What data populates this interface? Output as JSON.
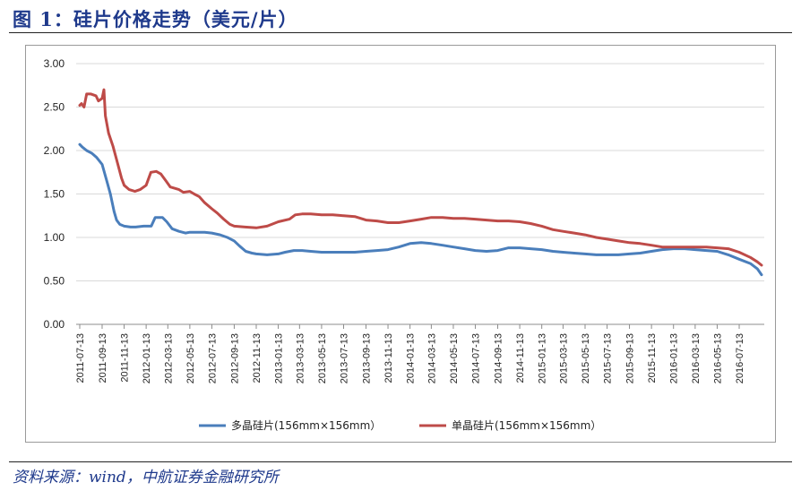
{
  "figure": {
    "title": "图 1：硅片价格走势（美元/片）",
    "source_label": "资料来源：",
    "source_text": "wind，中航证券金融研究所"
  },
  "colors": {
    "series_poly": "#4a7ebb",
    "series_mono": "#be4b48",
    "grid": "#d9d9d9",
    "axis": "#8c8c8c",
    "title": "#1f3a8c"
  },
  "chart_data": {
    "type": "line",
    "title": "",
    "xlabel": "",
    "ylabel": "",
    "ylim": [
      0,
      3
    ],
    "yticks": [
      "3.00",
      "2.50",
      "2.00",
      "1.50",
      "1.00",
      "0.50",
      "0.00"
    ],
    "xlim": [
      "2011-07-13",
      "2016-09-13"
    ],
    "xticks": [
      "2011-07-13",
      "2011-09-13",
      "2011-11-13",
      "2012-01-13",
      "2012-03-13",
      "2012-05-13",
      "2012-07-13",
      "2012-09-13",
      "2012-11-13",
      "2013-01-13",
      "2013-03-13",
      "2013-05-13",
      "2013-07-13",
      "2013-09-13",
      "2013-11-13",
      "2014-01-13",
      "2014-03-13",
      "2014-05-13",
      "2014-07-13",
      "2014-09-13",
      "2014-11-13",
      "2015-01-13",
      "2015-03-13",
      "2015-05-13",
      "2015-07-13",
      "2015-09-13",
      "2015-11-13",
      "2016-01-13",
      "2016-03-13",
      "2016-05-13",
      "2016-07-13"
    ],
    "grid": "horizontal",
    "legend_position": "bottom",
    "series": [
      {
        "name": "多晶硅片(156mm×156mm）",
        "color": "#4a7ebb",
        "points": [
          [
            "2011-07-13",
            2.07
          ],
          [
            "2011-07-20",
            2.04
          ],
          [
            "2011-08-01",
            2.0
          ],
          [
            "2011-08-15",
            1.97
          ],
          [
            "2011-08-29",
            1.92
          ],
          [
            "2011-09-13",
            1.84
          ],
          [
            "2011-09-26",
            1.65
          ],
          [
            "2011-10-06",
            1.5
          ],
          [
            "2011-10-16",
            1.3
          ],
          [
            "2011-10-23",
            1.2
          ],
          [
            "2011-11-01",
            1.15
          ],
          [
            "2011-11-13",
            1.13
          ],
          [
            "2011-12-01",
            1.12
          ],
          [
            "2011-12-15",
            1.12
          ],
          [
            "2012-01-06",
            1.13
          ],
          [
            "2012-01-27",
            1.13
          ],
          [
            "2012-02-07",
            1.23
          ],
          [
            "2012-02-27",
            1.23
          ],
          [
            "2012-03-10",
            1.18
          ],
          [
            "2012-03-25",
            1.1
          ],
          [
            "2012-04-13",
            1.07
          ],
          [
            "2012-05-01",
            1.05
          ],
          [
            "2012-05-13",
            1.06
          ],
          [
            "2012-06-01",
            1.06
          ],
          [
            "2012-06-23",
            1.06
          ],
          [
            "2012-07-13",
            1.05
          ],
          [
            "2012-08-05",
            1.03
          ],
          [
            "2012-08-25",
            1.0
          ],
          [
            "2012-09-13",
            0.96
          ],
          [
            "2012-09-28",
            0.9
          ],
          [
            "2012-10-15",
            0.84
          ],
          [
            "2012-11-01",
            0.82
          ],
          [
            "2012-11-13",
            0.81
          ],
          [
            "2012-12-13",
            0.8
          ],
          [
            "2013-01-13",
            0.81
          ],
          [
            "2013-02-01",
            0.83
          ],
          [
            "2013-02-25",
            0.85
          ],
          [
            "2013-03-20",
            0.85
          ],
          [
            "2013-04-13",
            0.84
          ],
          [
            "2013-05-13",
            0.83
          ],
          [
            "2013-06-13",
            0.83
          ],
          [
            "2013-07-13",
            0.83
          ],
          [
            "2013-08-13",
            0.83
          ],
          [
            "2013-09-13",
            0.84
          ],
          [
            "2013-10-13",
            0.85
          ],
          [
            "2013-11-13",
            0.86
          ],
          [
            "2013-12-13",
            0.89
          ],
          [
            "2014-01-13",
            0.93
          ],
          [
            "2014-02-13",
            0.94
          ],
          [
            "2014-03-13",
            0.93
          ],
          [
            "2014-04-13",
            0.91
          ],
          [
            "2014-05-13",
            0.89
          ],
          [
            "2014-06-13",
            0.87
          ],
          [
            "2014-07-13",
            0.85
          ],
          [
            "2014-08-13",
            0.84
          ],
          [
            "2014-09-13",
            0.85
          ],
          [
            "2014-10-13",
            0.88
          ],
          [
            "2014-11-13",
            0.88
          ],
          [
            "2014-12-13",
            0.87
          ],
          [
            "2015-01-13",
            0.86
          ],
          [
            "2015-02-13",
            0.84
          ],
          [
            "2015-03-13",
            0.83
          ],
          [
            "2015-04-13",
            0.82
          ],
          [
            "2015-05-13",
            0.81
          ],
          [
            "2015-06-13",
            0.8
          ],
          [
            "2015-07-13",
            0.8
          ],
          [
            "2015-08-13",
            0.8
          ],
          [
            "2015-09-13",
            0.81
          ],
          [
            "2015-10-13",
            0.82
          ],
          [
            "2015-11-13",
            0.84
          ],
          [
            "2015-12-13",
            0.86
          ],
          [
            "2016-01-13",
            0.87
          ],
          [
            "2016-02-13",
            0.87
          ],
          [
            "2016-03-13",
            0.86
          ],
          [
            "2016-04-13",
            0.85
          ],
          [
            "2016-05-13",
            0.84
          ],
          [
            "2016-06-13",
            0.8
          ],
          [
            "2016-07-13",
            0.75
          ],
          [
            "2016-08-13",
            0.7
          ],
          [
            "2016-09-01",
            0.64
          ],
          [
            "2016-09-13",
            0.57
          ]
        ]
      },
      {
        "name": "单晶硅片(156mm×156mm）",
        "color": "#be4b48",
        "points": [
          [
            "2011-07-13",
            2.52
          ],
          [
            "2011-07-18",
            2.54
          ],
          [
            "2011-07-25",
            2.5
          ],
          [
            "2011-08-01",
            2.65
          ],
          [
            "2011-08-13",
            2.65
          ],
          [
            "2011-08-27",
            2.63
          ],
          [
            "2011-09-03",
            2.57
          ],
          [
            "2011-09-13",
            2.6
          ],
          [
            "2011-09-18",
            2.7
          ],
          [
            "2011-09-22",
            2.4
          ],
          [
            "2011-10-01",
            2.2
          ],
          [
            "2011-10-13",
            2.05
          ],
          [
            "2011-10-26",
            1.85
          ],
          [
            "2011-11-06",
            1.68
          ],
          [
            "2011-11-13",
            1.6
          ],
          [
            "2011-11-27",
            1.55
          ],
          [
            "2011-12-13",
            1.53
          ],
          [
            "2011-12-27",
            1.55
          ],
          [
            "2012-01-13",
            1.6
          ],
          [
            "2012-01-26",
            1.75
          ],
          [
            "2012-02-10",
            1.76
          ],
          [
            "2012-02-23",
            1.73
          ],
          [
            "2012-03-08",
            1.65
          ],
          [
            "2012-03-20",
            1.58
          ],
          [
            "2012-04-13",
            1.55
          ],
          [
            "2012-04-25",
            1.52
          ],
          [
            "2012-05-13",
            1.53
          ],
          [
            "2012-05-25",
            1.5
          ],
          [
            "2012-06-08",
            1.47
          ],
          [
            "2012-06-23",
            1.4
          ],
          [
            "2012-07-13",
            1.33
          ],
          [
            "2012-07-28",
            1.28
          ],
          [
            "2012-08-15",
            1.21
          ],
          [
            "2012-09-01",
            1.15
          ],
          [
            "2012-09-13",
            1.13
          ],
          [
            "2012-10-13",
            1.12
          ],
          [
            "2012-11-13",
            1.11
          ],
          [
            "2012-12-13",
            1.13
          ],
          [
            "2013-01-13",
            1.18
          ],
          [
            "2013-02-13",
            1.21
          ],
          [
            "2013-03-01",
            1.26
          ],
          [
            "2013-03-20",
            1.27
          ],
          [
            "2013-04-13",
            1.27
          ],
          [
            "2013-05-13",
            1.26
          ],
          [
            "2013-06-13",
            1.26
          ],
          [
            "2013-07-13",
            1.25
          ],
          [
            "2013-08-13",
            1.24
          ],
          [
            "2013-09-13",
            1.2
          ],
          [
            "2013-10-13",
            1.19
          ],
          [
            "2013-11-13",
            1.17
          ],
          [
            "2013-12-13",
            1.17
          ],
          [
            "2014-01-13",
            1.19
          ],
          [
            "2014-02-13",
            1.21
          ],
          [
            "2014-03-13",
            1.23
          ],
          [
            "2014-04-13",
            1.23
          ],
          [
            "2014-05-13",
            1.22
          ],
          [
            "2014-06-13",
            1.22
          ],
          [
            "2014-07-13",
            1.21
          ],
          [
            "2014-08-13",
            1.2
          ],
          [
            "2014-09-13",
            1.19
          ],
          [
            "2014-10-13",
            1.19
          ],
          [
            "2014-11-13",
            1.18
          ],
          [
            "2014-12-13",
            1.16
          ],
          [
            "2015-01-13",
            1.13
          ],
          [
            "2015-02-13",
            1.09
          ],
          [
            "2015-03-13",
            1.07
          ],
          [
            "2015-04-13",
            1.05
          ],
          [
            "2015-05-13",
            1.03
          ],
          [
            "2015-06-13",
            1.0
          ],
          [
            "2015-07-13",
            0.98
          ],
          [
            "2015-08-13",
            0.96
          ],
          [
            "2015-09-13",
            0.94
          ],
          [
            "2015-10-13",
            0.93
          ],
          [
            "2015-11-13",
            0.91
          ],
          [
            "2015-12-13",
            0.89
          ],
          [
            "2016-01-13",
            0.89
          ],
          [
            "2016-02-13",
            0.89
          ],
          [
            "2016-03-13",
            0.89
          ],
          [
            "2016-04-13",
            0.89
          ],
          [
            "2016-05-13",
            0.88
          ],
          [
            "2016-06-13",
            0.87
          ],
          [
            "2016-07-13",
            0.83
          ],
          [
            "2016-08-13",
            0.77
          ],
          [
            "2016-09-01",
            0.72
          ],
          [
            "2016-09-13",
            0.68
          ]
        ]
      }
    ]
  }
}
